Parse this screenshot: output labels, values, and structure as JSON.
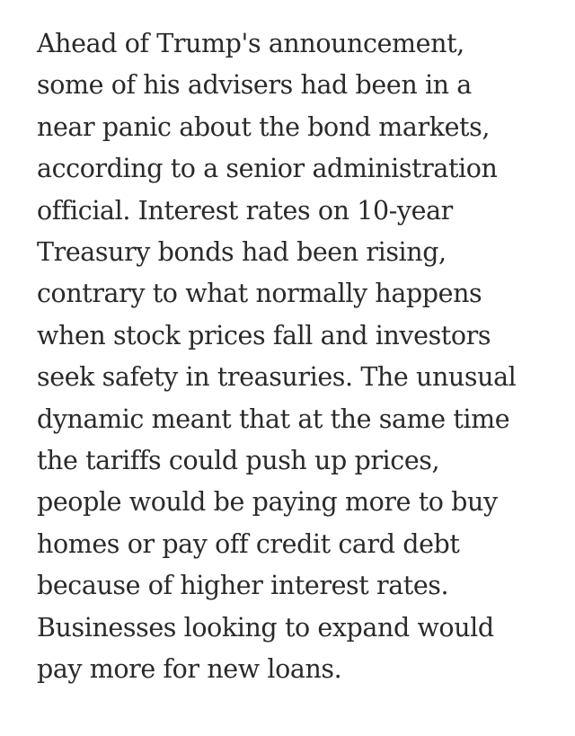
{
  "article": {
    "lines": [
      "Ahead of Trump's announcement,",
      "some of his advisers had been in a",
      "near panic about the bond markets,",
      "according to a senior administration",
      "official. Interest rates on 10-year",
      "Treasury bonds had been rising,",
      "contrary to what normally happens",
      "when stock prices fall and investors",
      "seek safety in treasuries. The unusual",
      "dynamic meant that at the same time",
      "the tariffs could push up prices,",
      "people would be paying more to buy",
      "homes or pay off credit card debt",
      "because of higher interest rates.",
      "Businesses looking to expand would",
      "pay more for new loans."
    ]
  },
  "colors": {
    "text": "#2a2a2a",
    "background": "#ffffff"
  }
}
